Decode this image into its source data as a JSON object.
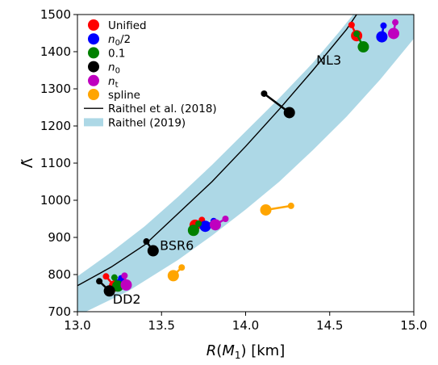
{
  "chart_data": {
    "type": "scatter",
    "xlabel": "R(M1) [km]",
    "ylabel": "Λ̃",
    "xlim": [
      13.0,
      15.0
    ],
    "ylim": [
      700,
      1500
    ],
    "xticks": [
      "13.0",
      "13.5",
      "14.0",
      "14.5",
      "15.0"
    ],
    "yticks": [
      "700",
      "800",
      "900",
      "1000",
      "1100",
      "1200",
      "1300",
      "1400",
      "1500"
    ],
    "grid": false,
    "legend": {
      "placement": "top-left",
      "entries": [
        {
          "label": "Unified",
          "color": "#ff0000",
          "kind": "marker"
        },
        {
          "label": "n0/2",
          "color": "#0000ff",
          "kind": "marker"
        },
        {
          "label": "0.1",
          "color": "#008000",
          "kind": "marker"
        },
        {
          "label": "n0",
          "color": "#000000",
          "kind": "marker"
        },
        {
          "label": "nt",
          "color": "#bf00bf",
          "kind": "marker"
        },
        {
          "label": "spline",
          "color": "#ffa500",
          "kind": "marker"
        },
        {
          "label": "Raithel et al. (2018)",
          "color": "#000000",
          "kind": "line"
        },
        {
          "label": "Raithel (2019)",
          "color": "#add8e6",
          "kind": "band"
        }
      ]
    },
    "annotations": [
      {
        "text": "NL3",
        "x": 14.42,
        "y": 1365
      },
      {
        "text": "BSR6",
        "x": 13.49,
        "y": 866
      },
      {
        "text": "DD2",
        "x": 13.21,
        "y": 722
      }
    ],
    "band": {
      "label": "Raithel (2019)",
      "color": "#add8e6",
      "lower": [
        [
          13.05,
          700
        ],
        [
          13.3,
          755
        ],
        [
          13.6,
          840
        ],
        [
          13.8,
          905
        ],
        [
          14.0,
          975
        ],
        [
          14.2,
          1050
        ],
        [
          14.4,
          1135
        ],
        [
          14.6,
          1225
        ],
        [
          14.8,
          1325
        ],
        [
          15.0,
          1435
        ]
      ],
      "upper": [
        [
          13.0,
          795
        ],
        [
          13.2,
          860
        ],
        [
          13.4,
          930
        ],
        [
          13.6,
          1010
        ],
        [
          13.8,
          1095
        ],
        [
          14.0,
          1185
        ],
        [
          14.2,
          1275
        ],
        [
          14.4,
          1370
        ],
        [
          14.55,
          1450
        ],
        [
          14.64,
          1500
        ]
      ]
    },
    "fit_line": {
      "label": "Raithel et al. (2018)",
      "color": "#000000",
      "points": [
        [
          13.0,
          770
        ],
        [
          13.2,
          820
        ],
        [
          13.4,
          880
        ],
        [
          13.6,
          965
        ],
        [
          13.8,
          1050
        ],
        [
          14.0,
          1145
        ],
        [
          14.2,
          1245
        ],
        [
          14.4,
          1350
        ],
        [
          14.6,
          1460
        ],
        [
          14.66,
          1500
        ]
      ]
    },
    "series": [
      {
        "name": "Unified",
        "color": "#ff0000",
        "points": [
          {
            "x": 14.66,
            "y": 1443,
            "x2": 14.63,
            "y2": 1472
          },
          {
            "x": 13.7,
            "y": 933,
            "x2": 13.74,
            "y2": 947
          },
          {
            "x": 13.22,
            "y": 769,
            "x2": 13.17,
            "y2": 795
          }
        ]
      },
      {
        "name": "n0/2",
        "color": "#0000ff",
        "points": [
          {
            "x": 14.81,
            "y": 1440,
            "x2": 14.82,
            "y2": 1470
          },
          {
            "x": 13.76,
            "y": 930,
            "x2": 13.81,
            "y2": 944
          },
          {
            "x": 13.25,
            "y": 773,
            "x2": 13.26,
            "y2": 790
          }
        ]
      },
      {
        "name": "0.1",
        "color": "#008000",
        "points": [
          {
            "x": 14.7,
            "y": 1413,
            "x2": 14.66,
            "y2": 1448
          },
          {
            "x": 13.69,
            "y": 919,
            "x2": 13.72,
            "y2": 937
          },
          {
            "x": 13.24,
            "y": 769,
            "x2": 13.22,
            "y2": 792
          }
        ]
      },
      {
        "name": "n0",
        "color": "#000000",
        "points": [
          {
            "x": 14.26,
            "y": 1236,
            "x2": 14.11,
            "y2": 1287
          },
          {
            "x": 13.45,
            "y": 864,
            "x2": 13.41,
            "y2": 889
          },
          {
            "x": 13.19,
            "y": 756,
            "x2": 13.13,
            "y2": 782
          }
        ]
      },
      {
        "name": "nt",
        "color": "#bf00bf",
        "points": [
          {
            "x": 14.88,
            "y": 1449,
            "x2": 14.89,
            "y2": 1479
          },
          {
            "x": 13.82,
            "y": 934,
            "x2": 13.88,
            "y2": 950
          },
          {
            "x": 13.29,
            "y": 772,
            "x2": 13.28,
            "y2": 797
          }
        ]
      },
      {
        "name": "spline",
        "color": "#ffa500",
        "points": [
          {
            "x": 14.12,
            "y": 974,
            "x2": 14.27,
            "y2": 985
          },
          {
            "x": 13.57,
            "y": 797,
            "x2": 13.62,
            "y2": 819
          }
        ]
      }
    ]
  }
}
